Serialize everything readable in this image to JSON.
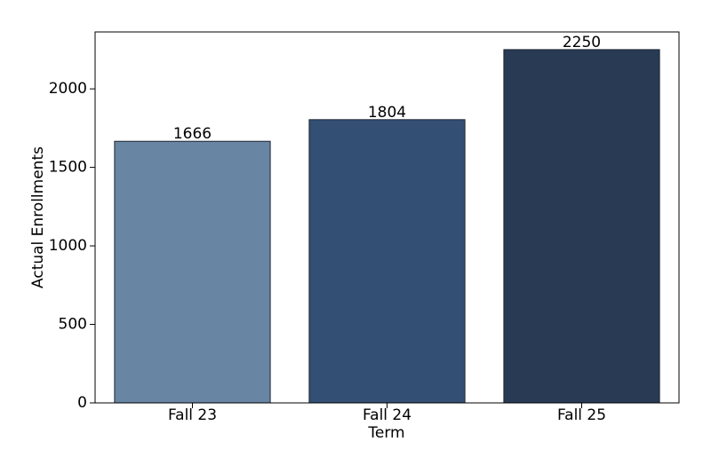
{
  "chart_data": {
    "type": "bar",
    "x_label": "Term",
    "y_label": "Actual Enrollments",
    "categories": [
      "Fall 23",
      "Fall 24",
      "Fall 25"
    ],
    "values": [
      1666,
      1804,
      2250
    ],
    "colors": [
      "#6886a3",
      "#335074",
      "#283a54"
    ],
    "ylim": [
      0,
      2362.5
    ],
    "yticks": [
      0,
      500,
      1000,
      1500,
      2000
    ],
    "value_labels_shown": true
  }
}
